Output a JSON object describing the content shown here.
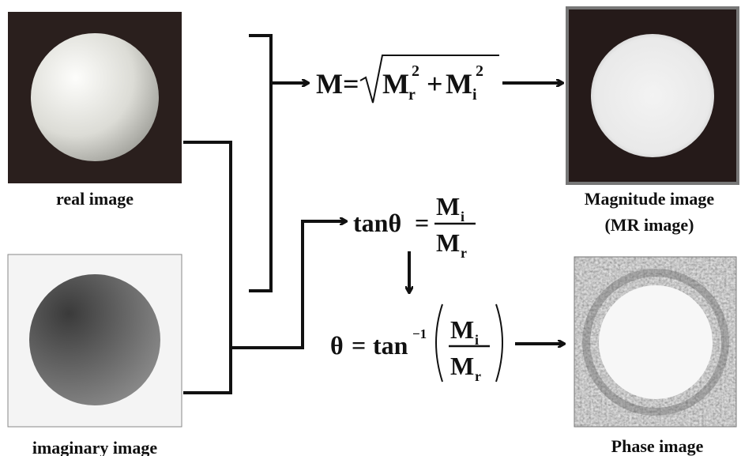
{
  "images": {
    "real": {
      "label": "real image"
    },
    "imaginary": {
      "label": "imaginary image"
    },
    "magnitude": {
      "label": [
        "Magnitude image",
        "(MR image)"
      ]
    },
    "phase": {
      "label": "Phase image"
    }
  },
  "formulas": {
    "magnitude": {
      "lhs": "M",
      "eq": "=",
      "term1": "M",
      "sub1": "r",
      "sup1": "2",
      "plus": "+",
      "term2": "M",
      "sub2": "i",
      "sup2": "2"
    },
    "tangent": {
      "lhs": "tanθ",
      "eq": "=",
      "num": "M",
      "num_sub": "i",
      "den": "M",
      "den_sub": "r"
    },
    "phase": {
      "lhs": "θ",
      "eq": "=",
      "func": "tan",
      "sup": "−1",
      "num": "M",
      "num_sub": "i",
      "den": "M",
      "den_sub": "r"
    }
  }
}
